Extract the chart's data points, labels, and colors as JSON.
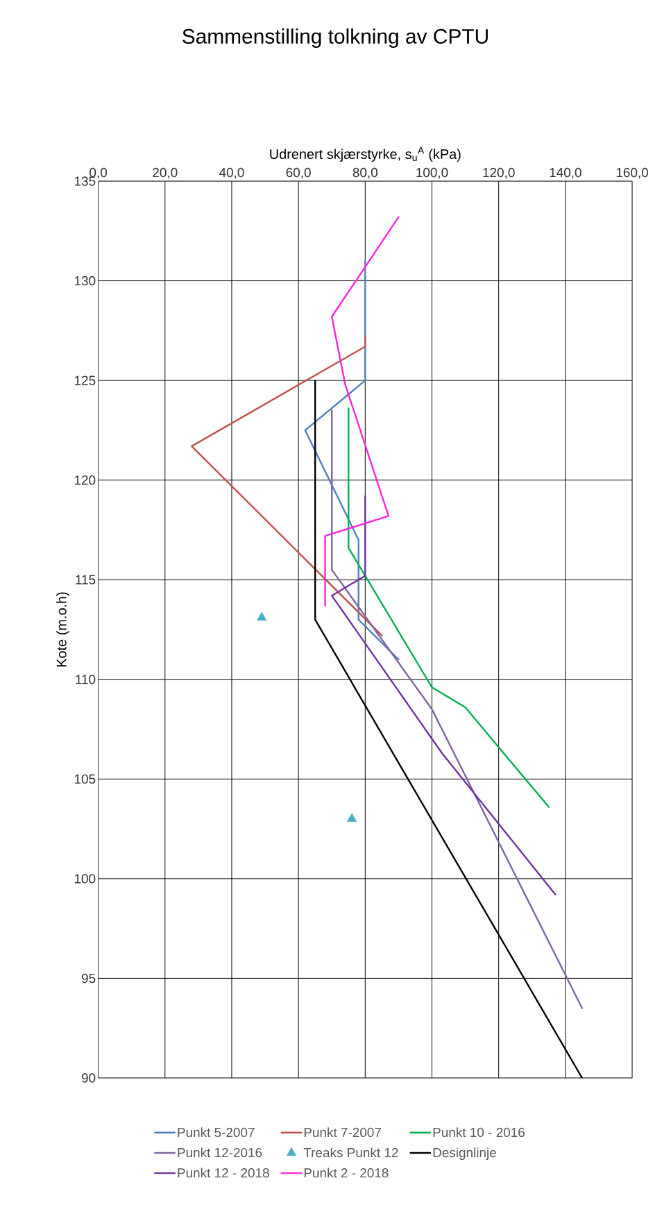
{
  "chart_data": {
    "type": "line",
    "title": "Sammenstilling tolkning av CPTU",
    "xlabel": "Udrenert skjærstyrke, s$_{u}$$^{A}$ (kPa)",
    "ylabel": "Kote (m.o.h)",
    "xlim": [
      0,
      160
    ],
    "ylim": [
      90,
      135
    ],
    "xticks": [
      {
        "value": 0,
        "label": "0,0"
      },
      {
        "value": 20,
        "label": "20,0"
      },
      {
        "value": 40,
        "label": "40,0"
      },
      {
        "value": 60,
        "label": "60,0"
      },
      {
        "value": 80,
        "label": "80,0"
      },
      {
        "value": 100,
        "label": "100,0"
      },
      {
        "value": 120,
        "label": "120,0"
      },
      {
        "value": 140,
        "label": "140,0"
      },
      {
        "value": 160,
        "label": "160,0"
      }
    ],
    "yticks": [
      90,
      95,
      100,
      105,
      110,
      115,
      120,
      125,
      130,
      135
    ],
    "grid": true,
    "legend": "bottom",
    "marker": "none",
    "line_style": "solid",
    "series": [
      {
        "name": "Punkt 5-2007",
        "color": "#4f81bd",
        "x": [
          80,
          80,
          62,
          78,
          78,
          90
        ],
        "values": [
          131,
          125,
          122.5,
          117,
          113,
          111
        ]
      },
      {
        "name": "Punkt 7-2007",
        "color": "#c0504d",
        "x": [
          80,
          80,
          28,
          85
        ],
        "values": [
          127.2,
          126.7,
          121.7,
          112.2
        ]
      },
      {
        "name": "Punkt 10 - 2016",
        "color": "#00b050",
        "x": [
          75,
          75,
          100,
          110,
          135
        ],
        "values": [
          123.6,
          116.6,
          109.6,
          108.6,
          103.6
        ]
      },
      {
        "name": "Punkt 12-2016",
        "color": "#8064a2",
        "x": [
          70,
          70,
          100,
          145
        ],
        "values": [
          123.5,
          115.5,
          108.5,
          93.5
        ]
      },
      {
        "name": "Treaks Punkt 12",
        "color": "#4bacc6",
        "type": "scatter",
        "marker": "triangle",
        "x": [
          49,
          76
        ],
        "values": [
          113.1,
          103
        ]
      },
      {
        "name": "Designlinje",
        "color": "#000000",
        "x": [
          65,
          65,
          145
        ],
        "values": [
          125,
          113,
          90
        ]
      },
      {
        "name": "Punkt 12 - 2018",
        "color": "#7030a0",
        "x": [
          80,
          80,
          70,
          103,
          137
        ],
        "values": [
          119.2,
          115.2,
          114.2,
          106.3,
          99.2
        ]
      },
      {
        "name": "Punkt 2 - 2018",
        "color": "#ff22dd",
        "x": [
          90,
          70,
          74,
          87,
          68,
          68
        ],
        "values": [
          133.2,
          128.2,
          124.8,
          118.2,
          117.2,
          113.7
        ]
      }
    ]
  }
}
